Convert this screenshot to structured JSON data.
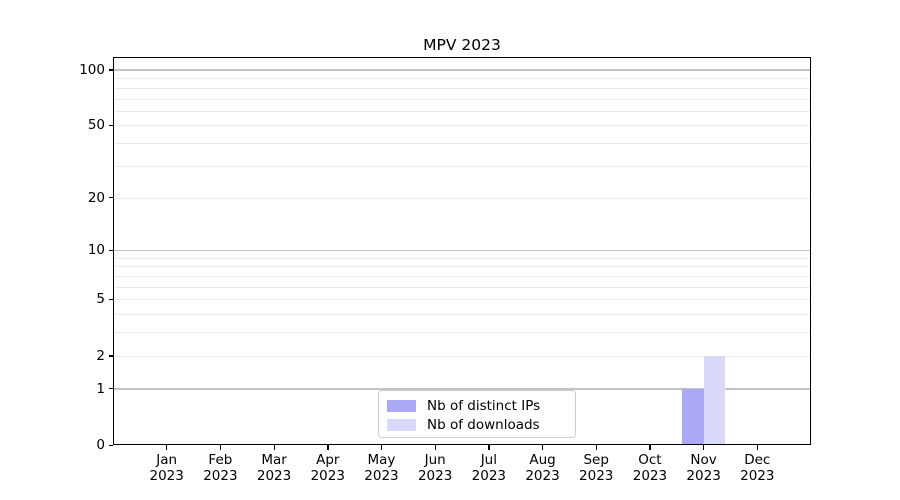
{
  "chart_data": {
    "type": "bar",
    "title": "MPV 2023",
    "categories": [
      "Jan",
      "Feb",
      "Mar",
      "Apr",
      "May",
      "Jun",
      "Jul",
      "Aug",
      "Sep",
      "Oct",
      "Nov",
      "Dec"
    ],
    "year": "2023",
    "series": [
      {
        "name": "Nb of distinct IPs",
        "color": "#a9a9f5",
        "values": [
          0,
          0,
          0,
          0,
          0,
          0,
          0,
          0,
          0,
          0,
          1,
          0
        ]
      },
      {
        "name": "Nb of downloads",
        "color": "#d8d8f8",
        "values": [
          0,
          0,
          0,
          0,
          0,
          0,
          0,
          0,
          0,
          0,
          2,
          0
        ]
      }
    ],
    "yticks": [
      0,
      1,
      2,
      5,
      10,
      20,
      50,
      100
    ],
    "ylim": [
      0,
      117.4
    ],
    "scale": "log10(1+y)",
    "xlabel": "",
    "ylabel": "",
    "grid": {
      "axis": "y",
      "major_values": [
        1,
        10,
        100
      ],
      "minor_values": [
        2,
        3,
        4,
        5,
        6,
        7,
        8,
        9,
        20,
        30,
        40,
        50,
        60,
        70,
        80,
        90
      ],
      "major_color": "#c3c3c3",
      "minor_color": "#ebebeb"
    },
    "legend": {
      "position": "lower center"
    }
  }
}
